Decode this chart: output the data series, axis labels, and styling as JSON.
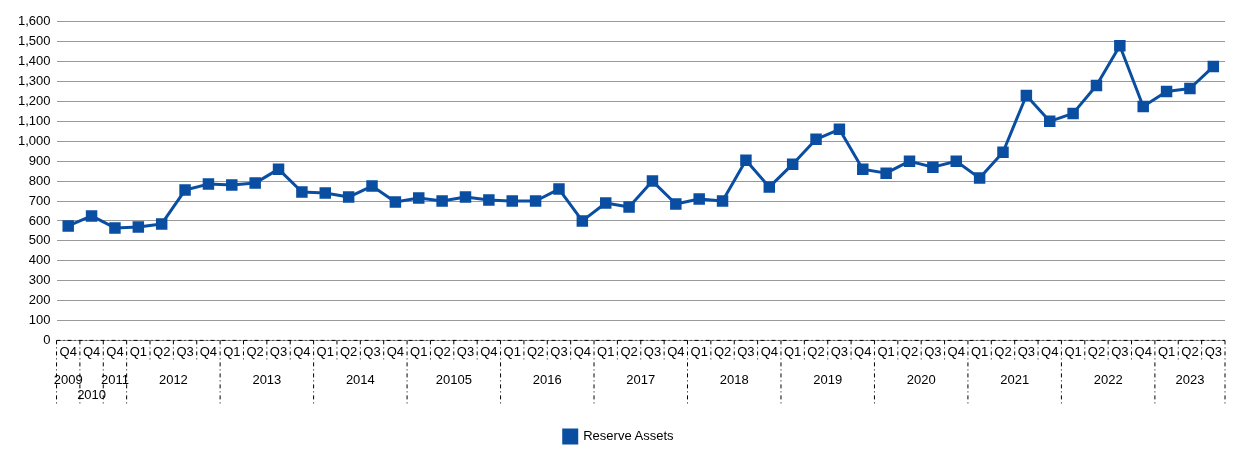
{
  "chart_data": {
    "type": "line",
    "categories": [
      "Q4",
      "Q4",
      "Q4",
      "Q1",
      "Q2",
      "Q3",
      "Q4",
      "Q1",
      "Q2",
      "Q3",
      "Q4",
      "Q1",
      "Q2",
      "Q3",
      "Q4",
      "Q1",
      "Q2",
      "Q3",
      "Q4",
      "Q1",
      "Q2",
      "Q3",
      "Q4",
      "Q1",
      "Q2",
      "Q3",
      "Q4",
      "Q1",
      "Q2",
      "Q3",
      "Q4",
      "Q1",
      "Q2",
      "Q3",
      "Q4",
      "Q1",
      "Q2",
      "Q3",
      "Q4",
      "Q1",
      "Q2",
      "Q3",
      "Q4",
      "Q1",
      "Q2",
      "Q3",
      "Q4",
      "Q1",
      "Q2",
      "Q3"
    ],
    "series": [
      {
        "name": "Reserve Assets",
        "color": "#0a4ea2",
        "values": [
          575,
          625,
          565,
          570,
          585,
          755,
          785,
          780,
          790,
          860,
          745,
          740,
          720,
          775,
          695,
          715,
          700,
          720,
          705,
          700,
          700,
          760,
          600,
          690,
          670,
          800,
          685,
          710,
          700,
          905,
          770,
          885,
          1010,
          1060,
          860,
          840,
          900,
          870,
          900,
          815,
          945,
          1230,
          1100,
          1140,
          1280,
          1480,
          1175,
          1250,
          1265,
          1375
        ]
      }
    ],
    "annotations": [
      "2009",
      "2010",
      "2011",
      "2012",
      "2013",
      "2014",
      "20105",
      "2016",
      "2017",
      "2018",
      "2019",
      "2020",
      "2021",
      "2022",
      "2023"
    ],
    "ylim": [
      0,
      1600
    ],
    "yticks": [
      0,
      100,
      200,
      300,
      400,
      500,
      600,
      700,
      800,
      900,
      {
        "value": 1000,
        "label": "1,000"
      },
      {
        "value": 1100,
        "label": "1,100"
      },
      {
        "value": 1200,
        "label": "1,200"
      },
      {
        "value": 1300,
        "label": "1,300"
      },
      {
        "value": 1400,
        "label": "1,400"
      },
      {
        "value": 1500,
        "label": "1,500"
      },
      {
        "value": 1600,
        "label": "1,600"
      }
    ],
    "grid": "y",
    "legend": "bottom",
    "marker": "square",
    "line_style": "solid"
  }
}
